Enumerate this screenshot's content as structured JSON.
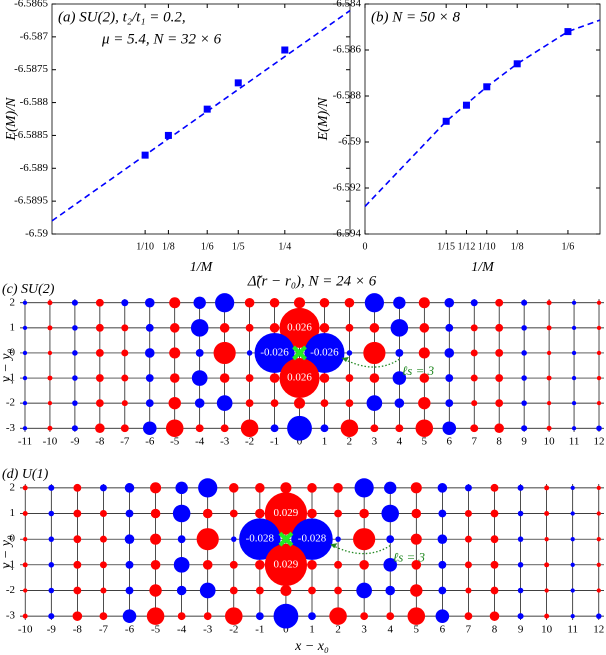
{
  "chart_data": [
    {
      "type": "scatter",
      "label": [
        "(a) SU(2), t₂/t₁ = 0.2,",
        "μ = 5.4, N = 32 × 6"
      ],
      "xlabel": "1/M",
      "ylabel": "E(M)/N",
      "color": "#0000ff",
      "x": [
        0.1,
        0.125,
        0.166667,
        0.2,
        0.25
      ],
      "values": [
        -6.5888,
        -6.5885,
        -6.5881,
        -6.5877,
        -6.5872
      ],
      "fit": {
        "x": [
          0,
          0.32
        ],
        "values": [
          -6.5898,
          -6.5866
        ]
      },
      "xlim": [
        0,
        0.32
      ],
      "ylim": [
        -6.59,
        -6.5865
      ],
      "xticks": [
        {
          "value": 0.1,
          "label": "1/10"
        },
        {
          "value": 0.125,
          "label": "1/8"
        },
        {
          "value": 0.166667,
          "label": "1/6"
        },
        {
          "value": 0.2,
          "label": "1/5"
        },
        {
          "value": 0.25,
          "label": "1/4"
        }
      ],
      "yticks": [
        -6.5865,
        -6.587,
        -6.5875,
        -6.588,
        -6.5885,
        -6.589,
        -6.5895,
        -6.59
      ]
    },
    {
      "type": "scatter",
      "label": [
        "(b) N = 50 × 8"
      ],
      "xlabel": "1/M",
      "ylabel": "E(M)/N",
      "color": "#0000ff",
      "x": [
        0.066667,
        0.083333,
        0.1,
        0.125,
        0.166667
      ],
      "values": [
        -6.5891,
        -6.5884,
        -6.5876,
        -6.5866,
        -6.5852
      ],
      "fit": {
        "x": [
          0,
          0.066667,
          0.1,
          0.125,
          0.166667,
          0.193
        ],
        "values": [
          -6.5928,
          -6.5891,
          -6.5876,
          -6.5866,
          -6.5852,
          -6.5847
        ]
      },
      "xlim": [
        0,
        0.193
      ],
      "ylim": [
        -6.594,
        -6.584
      ],
      "xticks": [
        0,
        {
          "value": 0.066667,
          "label": "1/15"
        },
        {
          "value": 0.083333,
          "label": "1/12"
        },
        {
          "value": 0.1,
          "label": "1/10"
        },
        {
          "value": 0.125,
          "label": "1/8"
        },
        {
          "value": 0.166667,
          "label": "1/6"
        }
      ],
      "yticks": [
        -6.584,
        -6.586,
        -6.588,
        -6.59,
        -6.592,
        -6.594
      ]
    },
    {
      "type": "lattice",
      "title": "Δ̃(r − r₀), N = 24 × 6",
      "label": [
        "(c) SU(2)"
      ],
      "ylabel": "y − y₀",
      "annotation": "ℓs = 3",
      "positive_color": "#ff0000",
      "negative_color": "#0000ff",
      "xlim": [
        -11.2,
        12.2
      ],
      "ylim": [
        -3.15,
        2.15
      ],
      "xticks": [
        -11,
        -10,
        -9,
        -8,
        -7,
        -6,
        -5,
        -4,
        -3,
        -2,
        -1,
        0,
        1,
        2,
        3,
        4,
        5,
        6,
        7,
        8,
        9,
        10,
        11,
        12
      ],
      "yticks": [
        2,
        1,
        0,
        -1,
        -2,
        -3
      ],
      "values": [
        [
          -0.0003,
          0.0004,
          -0.0006,
          0.001,
          -0.0008,
          -0.0015,
          0.002,
          -0.0025,
          -0.006,
          0.0015,
          0.0015,
          0.002,
          0.0015,
          0.0015,
          -0.006,
          -0.0025,
          0.002,
          -0.0015,
          -0.0008,
          0.001,
          -0.0006,
          0.0004,
          -0.0003,
          0.0003
        ],
        [
          -0.0003,
          0.0004,
          -0.0005,
          0.001,
          0.0008,
          -0.001,
          0.0015,
          -0.005,
          0.0015,
          0.001,
          0.0015,
          0.026,
          0.0015,
          0.001,
          0.0015,
          -0.005,
          0.0015,
          -0.001,
          0.0008,
          0.001,
          -0.0005,
          0.0004,
          -0.0003,
          0.0003
        ],
        [
          -0.0003,
          0.0003,
          -0.0005,
          0.001,
          0.0008,
          -0.0015,
          0.002,
          -0.001,
          0.008,
          -0.0005,
          -0.026,
          null,
          -0.026,
          -0.0005,
          0.008,
          -0.001,
          0.002,
          -0.0015,
          0.0008,
          0.001,
          -0.0005,
          0.0003,
          -0.0003,
          0.0003
        ],
        [
          -0.0003,
          0.0004,
          -0.0005,
          0.001,
          0.0008,
          -0.001,
          0.0015,
          -0.004,
          0.0015,
          0.001,
          0.0015,
          0.026,
          0.0015,
          0.001,
          0.0015,
          -0.003,
          0.0015,
          -0.001,
          0.0008,
          0.001,
          -0.0005,
          0.0004,
          -0.0003,
          0.0003
        ],
        [
          -0.0003,
          0.0003,
          -0.0005,
          0.001,
          0.0006,
          -0.001,
          0.0025,
          -0.0015,
          -0.004,
          0.001,
          0.001,
          0.002,
          0.001,
          0.001,
          -0.004,
          -0.0015,
          0.0025,
          -0.001,
          0.0006,
          0.001,
          -0.0005,
          0.0003,
          -0.0003,
          0.0003
        ],
        [
          -0.0003,
          0.0004,
          -0.0006,
          0.0015,
          0.001,
          -0.003,
          0.005,
          0.001,
          0.001,
          0.005,
          -0.001,
          -0.01,
          -0.001,
          0.005,
          0.001,
          0.001,
          0.005,
          -0.003,
          0.001,
          0.0015,
          -0.0006,
          0.0004,
          -0.0003,
          -0.0005
        ]
      ]
    },
    {
      "type": "lattice",
      "label": [
        "(d) U(1)"
      ],
      "ylabel": "y − y₀",
      "xlabel": "x − x₀",
      "annotation": "ℓs = 3",
      "positive_color": "#ff0000",
      "negative_color": "#0000ff",
      "xlim": [
        -10.2,
        12.2
      ],
      "ylim": [
        -3.15,
        2.15
      ],
      "xticks": [
        -10,
        -9,
        -8,
        -7,
        -6,
        -5,
        -4,
        -3,
        -2,
        -1,
        0,
        1,
        2,
        3,
        4,
        5,
        6,
        7,
        8,
        9,
        10,
        11,
        12
      ],
      "yticks": [
        2,
        1,
        0,
        -1,
        -2,
        -3
      ],
      "values": [
        [
          0.0004,
          -0.0006,
          0.001,
          -0.0008,
          -0.0015,
          0.002,
          -0.0025,
          -0.006,
          0.0015,
          0.0015,
          0.002,
          0.0015,
          0.0015,
          -0.006,
          -0.0025,
          0.002,
          -0.0015,
          -0.0008,
          0.001,
          -0.0006,
          0.0004,
          -0.0003,
          0.0003
        ],
        [
          0.0004,
          -0.0005,
          0.001,
          0.0008,
          -0.001,
          0.0015,
          -0.005,
          0.0015,
          0.001,
          0.0015,
          0.029,
          0.0015,
          0.001,
          0.0015,
          -0.005,
          0.0015,
          -0.001,
          0.0008,
          0.001,
          -0.0005,
          0.0004,
          -0.0003,
          0.0003
        ],
        [
          0.0003,
          -0.0005,
          0.001,
          0.0008,
          -0.0015,
          0.002,
          -0.001,
          0.008,
          -0.0005,
          -0.028,
          null,
          -0.028,
          -0.0005,
          0.008,
          -0.001,
          0.002,
          -0.0015,
          0.0008,
          0.001,
          -0.0005,
          0.0003,
          -0.0003,
          0.0003
        ],
        [
          0.0004,
          -0.0005,
          0.001,
          0.0008,
          -0.001,
          0.0015,
          -0.004,
          0.0015,
          0.001,
          0.0015,
          0.029,
          0.0015,
          0.001,
          0.0015,
          -0.003,
          0.0015,
          -0.001,
          0.0008,
          0.001,
          -0.0005,
          0.0004,
          -0.0003,
          0.0003
        ],
        [
          0.0003,
          -0.0005,
          0.001,
          0.0006,
          -0.001,
          0.0025,
          -0.0015,
          -0.004,
          0.001,
          0.001,
          0.002,
          0.001,
          0.001,
          -0.004,
          -0.0015,
          0.0025,
          -0.001,
          0.0006,
          0.001,
          -0.0005,
          0.0003,
          -0.0003,
          0.0003
        ],
        [
          0.0004,
          -0.0006,
          0.0015,
          0.001,
          -0.003,
          0.005,
          0.001,
          0.001,
          0.005,
          -0.001,
          -0.01,
          -0.001,
          0.005,
          0.001,
          0.001,
          0.005,
          -0.003,
          0.001,
          0.0015,
          -0.0006,
          0.0004,
          -0.0003,
          -0.0005
        ]
      ]
    }
  ]
}
